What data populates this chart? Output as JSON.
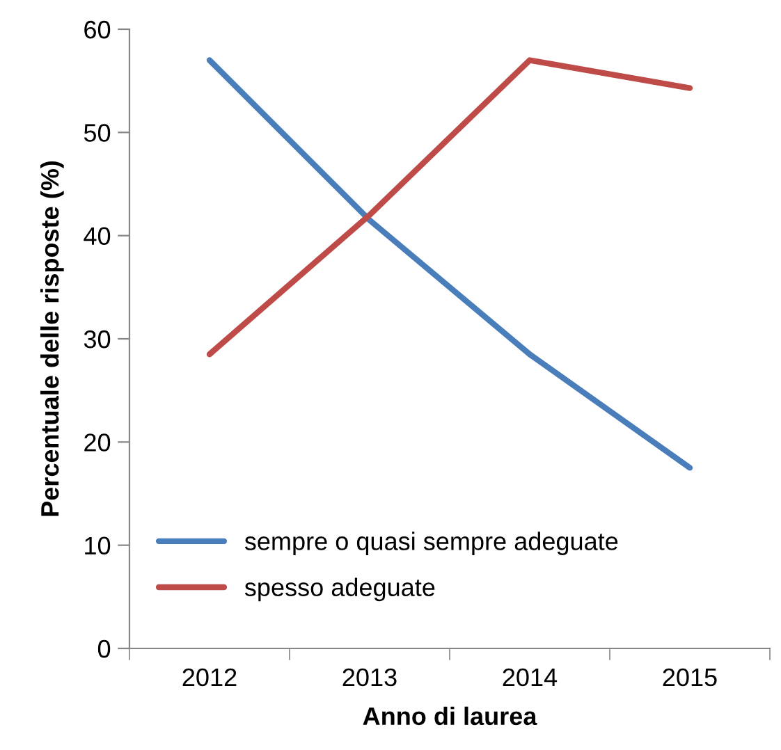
{
  "chart_data": {
    "type": "line",
    "xlabel": "Anno di laurea",
    "ylabel": "Percentuale delle risposte (%)",
    "categories": [
      "2012",
      "2013",
      "2014",
      "2015"
    ],
    "series": [
      {
        "name": "sempre o quasi sempre adeguate",
        "color": "#4a7ebb",
        "values": [
          57,
          41.5,
          28.5,
          17.5
        ]
      },
      {
        "name": "spesso adeguate",
        "color": "#be4b48",
        "values": [
          28.5,
          42,
          57,
          54.3
        ]
      }
    ],
    "ylim": [
      0,
      60
    ],
    "yticks": [
      0,
      10,
      20,
      30,
      40,
      50,
      60
    ],
    "grid": false,
    "legend": "bottom left",
    "marker": "none",
    "line_style": "solid"
  }
}
